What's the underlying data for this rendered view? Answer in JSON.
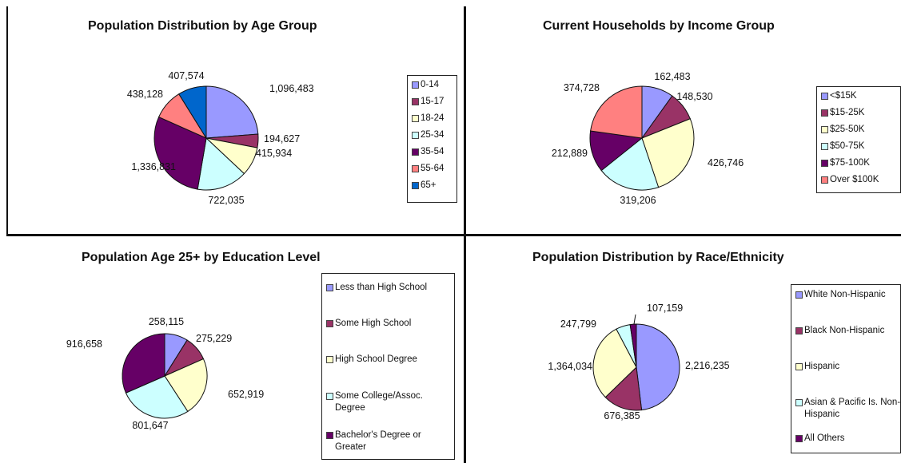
{
  "chart_data": [
    {
      "type": "pie",
      "title": "Population Distribution by Age Group",
      "legend_position": "right",
      "labels": [
        "0-14",
        "15-17",
        "18-24",
        "25-34",
        "35-54",
        "55-64",
        "65+"
      ],
      "values": [
        1096483,
        194627,
        415934,
        722035,
        1336831,
        438128,
        407574
      ],
      "data_labels": [
        "1,096,483",
        "194,627",
        "415,934",
        "722,035",
        "1,336,831",
        "438,128",
        "407,574"
      ],
      "colors": [
        "#9999ff",
        "#993366",
        "#ffffcc",
        "#ccffff",
        "#660066",
        "#ff8080",
        "#0066cc"
      ]
    },
    {
      "type": "pie",
      "title": "Current Households by Income Group",
      "legend_position": "right",
      "labels": [
        "<$15K",
        "$15-25K",
        "$25-50K",
        "$50-75K",
        "$75-100K",
        "Over $100K"
      ],
      "values": [
        162483,
        148530,
        426746,
        319206,
        212889,
        374728
      ],
      "data_labels": [
        "162,483",
        "148,530",
        "426,746",
        "319,206",
        "212,889",
        "374,728"
      ],
      "colors": [
        "#9999ff",
        "#993366",
        "#ffffcc",
        "#ccffff",
        "#660066",
        "#ff8080"
      ]
    },
    {
      "type": "pie",
      "title": "Population Age 25+ by Education Level",
      "legend_position": "right",
      "labels": [
        "Less than High School",
        "Some High School",
        "High School Degree",
        "Some College/Assoc. Degree",
        "Bachelor's Degree or Greater"
      ],
      "values": [
        258115,
        275229,
        652919,
        801647,
        916658
      ],
      "data_labels": [
        "258,115",
        "275,229",
        "652,919",
        "801,647",
        "916,658"
      ],
      "colors": [
        "#9999ff",
        "#993366",
        "#ffffcc",
        "#ccffff",
        "#660066"
      ]
    },
    {
      "type": "pie",
      "title": "Population Distribution by Race/Ethnicity",
      "legend_position": "right",
      "labels": [
        "White Non-Hispanic",
        "Black Non-Hispanic",
        "Hispanic",
        "Asian & Pacific Is. Non-Hispanic",
        "All Others"
      ],
      "values": [
        2216235,
        676385,
        1364034,
        247799,
        107159
      ],
      "data_labels": [
        "2,216,235",
        "676,385",
        "1,364,034",
        "247,799",
        "107,159"
      ],
      "colors": [
        "#9999ff",
        "#993366",
        "#ffffcc",
        "#ccffff",
        "#660066"
      ]
    }
  ]
}
